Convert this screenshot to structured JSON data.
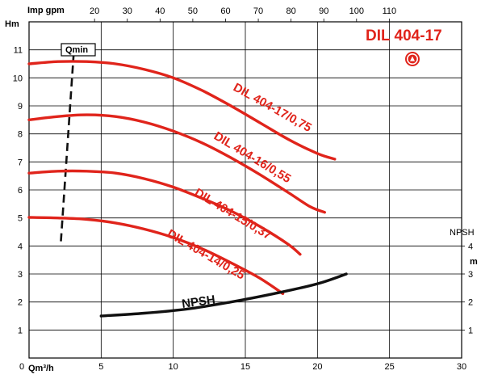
{
  "chart_data": {
    "type": "line",
    "title": "DIL 404-17",
    "xlabel": "Qm³/h",
    "xlabel_top": "Imp gpm",
    "ylabel": "Hm",
    "ylabel_right": "m",
    "ylabel_right_secondary": "NPSH",
    "x_ticks": [
      "5",
      "10",
      "15",
      "20",
      "25",
      "30"
    ],
    "x_zero": "0",
    "y_ticks": [
      "1",
      "2",
      "3",
      "4",
      "5",
      "6",
      "7",
      "8",
      "9",
      "10",
      "11"
    ],
    "x_top_ticks": [
      "20",
      "30",
      "40",
      "50",
      "60",
      "70",
      "80",
      "90",
      "100",
      "110"
    ],
    "y_right_ticks": [
      "1",
      "2",
      "3",
      "4"
    ],
    "xlim": [
      0,
      30
    ],
    "ylim": [
      0,
      12
    ],
    "grid": true,
    "qmin_label": "Qmin",
    "qmin_line": [
      {
        "x": 3.1,
        "y": 10.9
      },
      {
        "x": 2.2,
        "y": 4.1
      }
    ],
    "series": [
      {
        "name": "DIL 404-17/0,75",
        "color": "#e0241b",
        "points": [
          [
            0,
            10.5
          ],
          [
            2,
            10.58
          ],
          [
            4,
            10.58
          ],
          [
            6,
            10.5
          ],
          [
            8,
            10.3
          ],
          [
            10,
            10.0
          ],
          [
            12,
            9.55
          ],
          [
            14,
            9.0
          ],
          [
            16,
            8.4
          ],
          [
            18,
            7.8
          ],
          [
            20,
            7.3
          ],
          [
            21.2,
            7.1
          ]
        ]
      },
      {
        "name": "DIL 404-16/0,55",
        "color": "#e0241b",
        "points": [
          [
            0,
            8.5
          ],
          [
            2,
            8.62
          ],
          [
            4,
            8.68
          ],
          [
            6,
            8.62
          ],
          [
            8,
            8.42
          ],
          [
            10,
            8.1
          ],
          [
            12,
            7.68
          ],
          [
            14,
            7.15
          ],
          [
            16,
            6.55
          ],
          [
            18,
            5.9
          ],
          [
            19.5,
            5.4
          ],
          [
            20.5,
            5.2
          ]
        ]
      },
      {
        "name": "DIL 404-15/0,37",
        "color": "#e0241b",
        "points": [
          [
            0,
            6.6
          ],
          [
            2,
            6.67
          ],
          [
            4,
            6.67
          ],
          [
            6,
            6.6
          ],
          [
            8,
            6.4
          ],
          [
            10,
            6.1
          ],
          [
            12,
            5.7
          ],
          [
            14,
            5.25
          ],
          [
            16,
            4.7
          ],
          [
            18,
            4.05
          ],
          [
            18.8,
            3.7
          ]
        ]
      },
      {
        "name": "DIL 404-14/0,25",
        "color": "#e0241b",
        "points": [
          [
            0,
            5.02
          ],
          [
            2,
            5.0
          ],
          [
            4,
            4.95
          ],
          [
            6,
            4.82
          ],
          [
            8,
            4.6
          ],
          [
            10,
            4.3
          ],
          [
            12,
            3.9
          ],
          [
            14,
            3.4
          ],
          [
            16,
            2.85
          ],
          [
            17.6,
            2.3
          ]
        ]
      },
      {
        "name": "NPSH",
        "color": "#111111",
        "points": [
          [
            5,
            1.5
          ],
          [
            8,
            1.6
          ],
          [
            11,
            1.75
          ],
          [
            14,
            2.0
          ],
          [
            17,
            2.3
          ],
          [
            20,
            2.65
          ],
          [
            22,
            3.0
          ]
        ]
      }
    ]
  },
  "icon": "pump-symbol-icon"
}
